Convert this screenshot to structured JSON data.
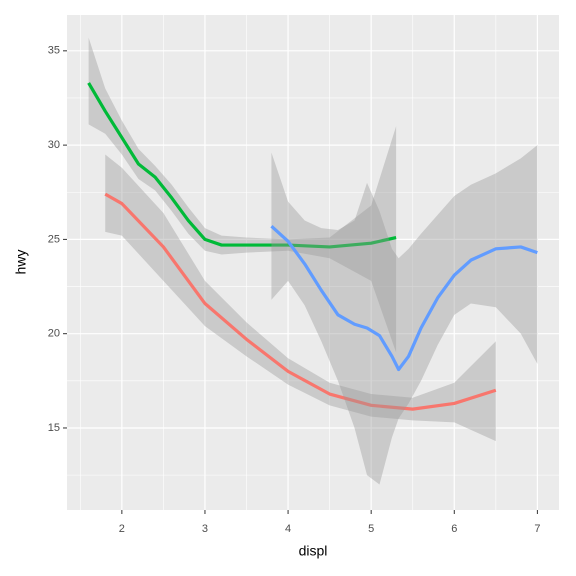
{
  "chart_data": {
    "type": "line",
    "x_label": "displ",
    "y_label": "hwy",
    "xlim": [
      1.34,
      7.26
    ],
    "ylim": [
      10.65,
      36.9
    ],
    "xticks": [
      2,
      3,
      4,
      5,
      6,
      7
    ],
    "yticks": [
      15,
      20,
      25,
      30,
      35
    ],
    "x_minor_grid": [
      1.5,
      2.5,
      3.5,
      4.5,
      5.5,
      6.5
    ],
    "y_minor_grid": [
      12.5,
      17.5,
      22.5,
      27.5,
      32.5
    ],
    "grid": true,
    "band_color": "#999999",
    "series": [
      {
        "color": "#F8766D",
        "x": [
          1.8,
          2.0,
          2.5,
          3.0,
          3.5,
          4.0,
          4.5,
          5.0,
          5.5,
          6.0,
          6.5
        ],
        "values": [
          27.4,
          26.9,
          24.6,
          21.6,
          19.7,
          18.0,
          16.8,
          16.2,
          16.0,
          16.3,
          17.0
        ],
        "upper": [
          29.5,
          28.8,
          26.4,
          22.8,
          20.6,
          18.7,
          17.4,
          16.8,
          16.6,
          17.4,
          19.6
        ],
        "lower": [
          25.4,
          25.2,
          22.8,
          20.4,
          18.8,
          17.3,
          16.2,
          15.6,
          15.4,
          15.3,
          14.3
        ]
      },
      {
        "color": "#00BA38",
        "x": [
          1.6,
          1.8,
          2.0,
          2.2,
          2.4,
          2.6,
          2.8,
          3.0,
          3.2,
          3.5,
          4.0,
          4.5,
          5.0,
          5.3
        ],
        "values": [
          33.3,
          31.8,
          30.4,
          29.0,
          28.3,
          27.2,
          26.0,
          25.0,
          24.7,
          24.7,
          24.7,
          24.6,
          24.8,
          25.1
        ],
        "upper": [
          35.7,
          33.0,
          31.3,
          29.8,
          28.9,
          27.9,
          26.7,
          25.6,
          25.2,
          25.1,
          25.0,
          25.1,
          26.8,
          31.0
        ],
        "lower": [
          31.1,
          30.6,
          29.5,
          28.2,
          27.6,
          26.5,
          25.3,
          24.4,
          24.2,
          24.3,
          24.4,
          24.0,
          22.8,
          19.0
        ]
      },
      {
        "color": "#619CFF",
        "x": [
          3.8,
          4.0,
          4.2,
          4.4,
          4.6,
          4.8,
          4.95,
          5.1,
          5.25,
          5.33,
          5.45,
          5.6,
          5.8,
          6.0,
          6.2,
          6.5,
          6.8,
          7.0
        ],
        "values": [
          25.7,
          24.9,
          23.7,
          22.3,
          21.0,
          20.5,
          20.3,
          19.9,
          18.8,
          18.1,
          18.8,
          20.3,
          21.9,
          23.1,
          23.9,
          24.5,
          24.6,
          24.3
        ],
        "upper": [
          29.6,
          27.0,
          26.0,
          25.6,
          25.5,
          26.0,
          28.0,
          26.5,
          24.5,
          24.0,
          24.5,
          25.3,
          26.3,
          27.3,
          27.9,
          28.5,
          29.3,
          30.0
        ],
        "lower": [
          21.8,
          22.8,
          21.5,
          19.6,
          17.5,
          15.0,
          12.5,
          12.0,
          14.5,
          15.5,
          16.3,
          17.5,
          19.4,
          21.0,
          21.6,
          21.4,
          20.0,
          18.4
        ]
      }
    ]
  }
}
